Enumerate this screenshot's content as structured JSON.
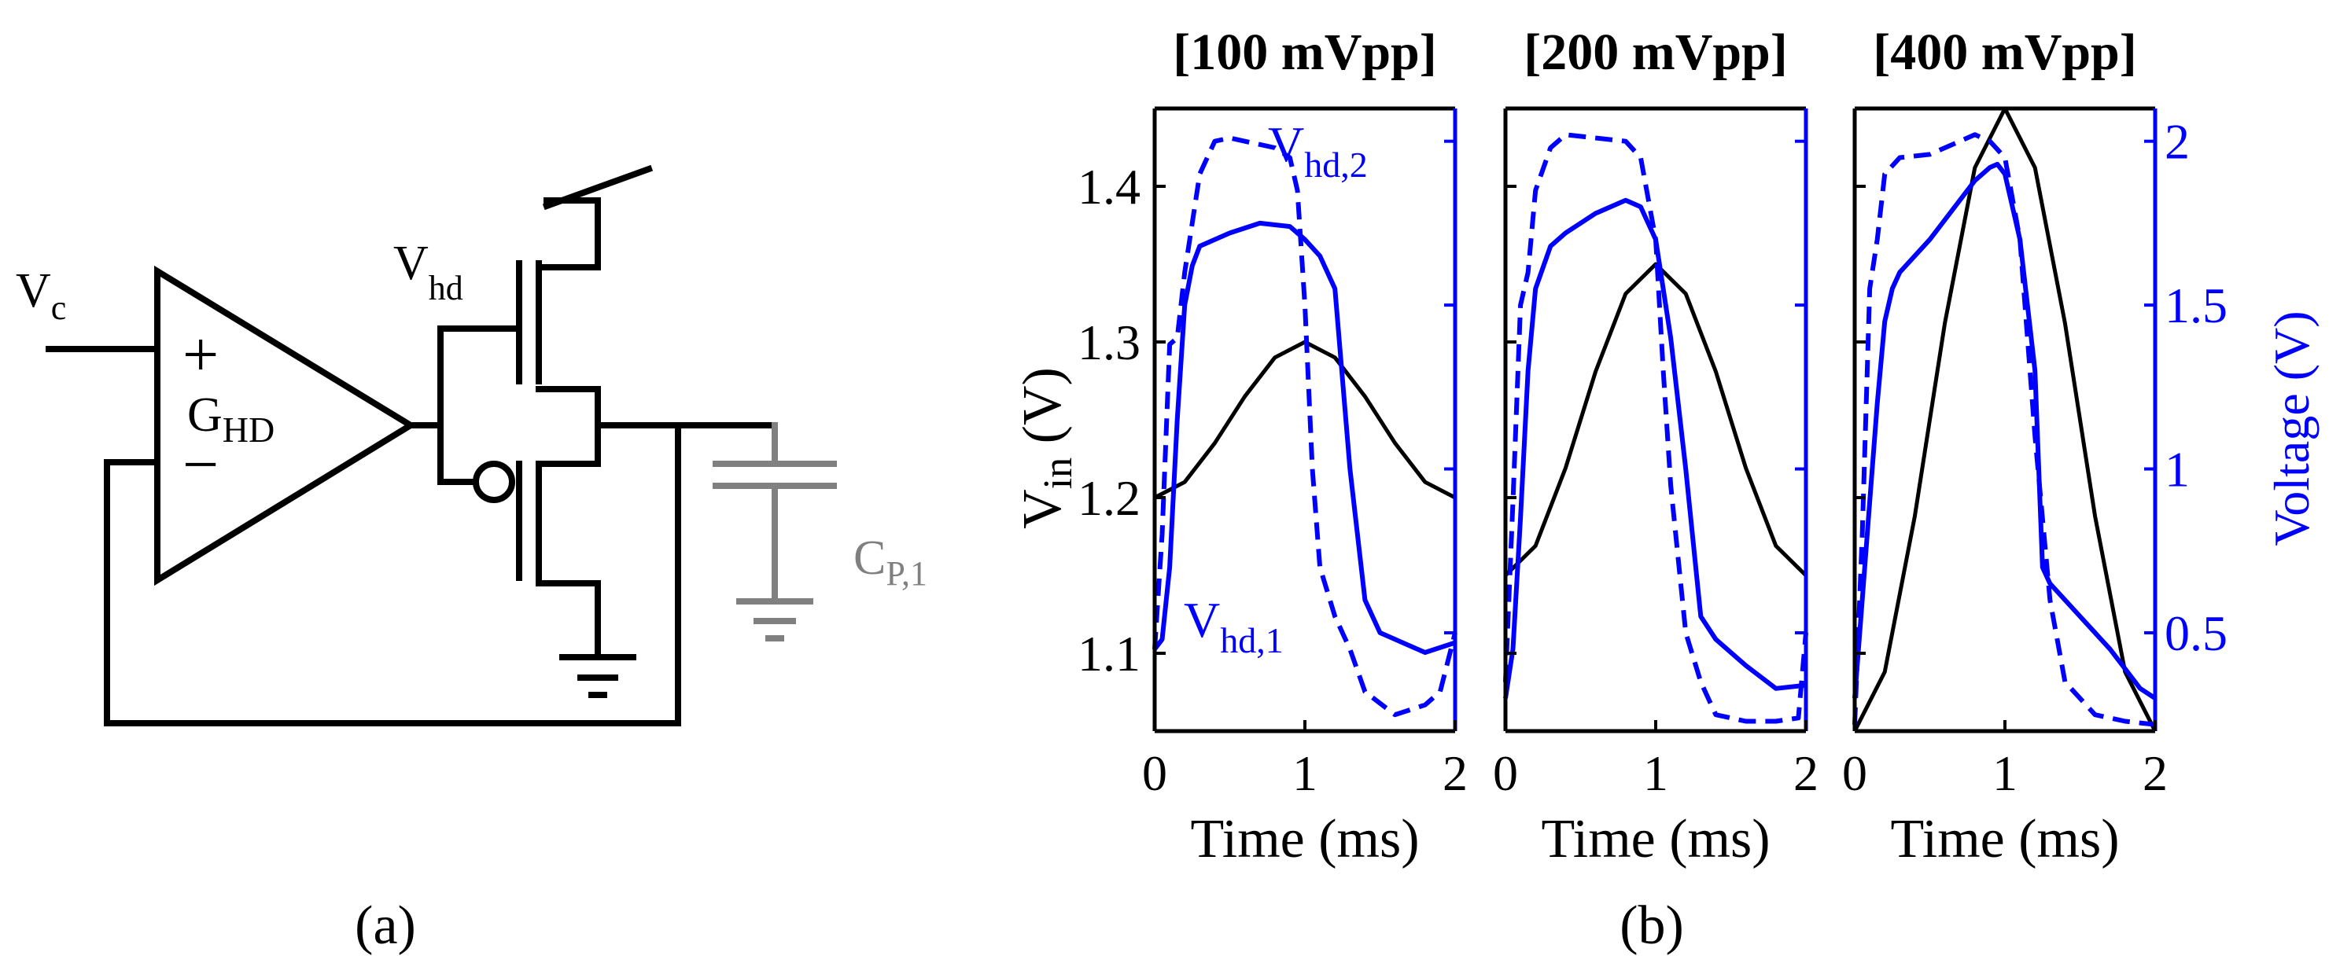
{
  "figure_a": {
    "caption": "(a)",
    "labels": {
      "vc_main": "V",
      "vc_sub": "c",
      "vhd_main": "V",
      "vhd_sub": "hd",
      "ghd_main": "G",
      "ghd_sub": "HD",
      "plus": "+",
      "minus": "−",
      "cp_main": "C",
      "cp_sub": "P,1"
    },
    "colors": {
      "circuit": "#000000",
      "parasitic": "#808080"
    }
  },
  "figure_b": {
    "caption": "(b)",
    "colors": {
      "vin": "#000000",
      "vhd": "#0000ff",
      "axis_left": "#000000",
      "axis_right": "#0000ff"
    },
    "left_axis": {
      "label_main": "V",
      "label_sub": "in",
      "label_unit": " (V)",
      "ylim": [
        1.05,
        1.45
      ],
      "ticks": [
        1.1,
        1.2,
        1.3,
        1.4
      ],
      "tick_labels": [
        "1.1",
        "1.2",
        "1.3",
        "1.4"
      ]
    },
    "right_axis": {
      "label": "Voltage (V)",
      "ylim": [
        0.2,
        2.1
      ],
      "ticks": [
        0.5,
        1,
        1.5,
        2
      ],
      "tick_labels": [
        "0.5",
        "1",
        "1.5",
        "2"
      ]
    },
    "x_axis": {
      "label": "Time (ms)",
      "xlim": [
        0,
        2
      ],
      "ticks": [
        0,
        1,
        2
      ],
      "tick_labels": [
        "0",
        "1",
        "2"
      ]
    },
    "annotations": {
      "vhd2_main": "V",
      "vhd2_sub": "hd,2",
      "vhd1_main": "V",
      "vhd1_sub": "hd,1"
    }
  },
  "chart_data": [
    {
      "type": "line",
      "title": "[100 mVpp]",
      "xlabel": "Time (ms)",
      "ylabel": "V_in (V)",
      "xlim": [
        0,
        2
      ],
      "ylim_left": [
        1.05,
        1.45
      ],
      "ylim_right": [
        0.2,
        2.1
      ],
      "series": [
        {
          "name": "V_in",
          "axis": "left",
          "style": "solid",
          "color": "#000000",
          "x": [
            0,
            0.2,
            0.4,
            0.6,
            0.8,
            1.0,
            1.2,
            1.4,
            1.6,
            1.8,
            2.0
          ],
          "values": [
            1.2,
            1.21,
            1.235,
            1.265,
            1.29,
            1.3,
            1.29,
            1.265,
            1.235,
            1.21,
            1.2
          ]
        },
        {
          "name": "V_hd,1",
          "axis": "right",
          "style": "solid",
          "color": "#0000ff",
          "x": [
            0,
            0.05,
            0.1,
            0.15,
            0.2,
            0.25,
            0.3,
            0.4,
            0.5,
            0.7,
            0.9,
            1.0,
            1.1,
            1.2,
            1.3,
            1.4,
            1.5,
            1.6,
            1.8,
            2.0
          ],
          "values": [
            0.45,
            0.48,
            0.7,
            1.15,
            1.5,
            1.62,
            1.68,
            1.7,
            1.72,
            1.75,
            1.74,
            1.7,
            1.65,
            1.55,
            1.0,
            0.6,
            0.5,
            0.48,
            0.44,
            0.47
          ]
        },
        {
          "name": "V_hd,2",
          "axis": "right",
          "style": "dashed",
          "color": "#0000ff",
          "x": [
            0,
            0.05,
            0.1,
            0.15,
            0.2,
            0.3,
            0.4,
            0.5,
            0.6,
            0.8,
            0.9,
            0.95,
            1.0,
            1.05,
            1.1,
            1.2,
            1.3,
            1.4,
            1.6,
            1.8,
            1.9,
            2.0
          ],
          "values": [
            0.45,
            0.8,
            1.38,
            1.4,
            1.6,
            1.9,
            2.0,
            2.01,
            2.0,
            1.98,
            1.95,
            1.85,
            1.5,
            1.0,
            0.7,
            0.55,
            0.45,
            0.32,
            0.25,
            0.28,
            0.32,
            0.5
          ]
        }
      ]
    },
    {
      "type": "line",
      "title": "[200 mVpp]",
      "xlabel": "Time (ms)",
      "xlim": [
        0,
        2
      ],
      "ylim_left": [
        1.05,
        1.45
      ],
      "ylim_right": [
        0.2,
        2.1
      ],
      "series": [
        {
          "name": "V_in",
          "axis": "left",
          "style": "solid",
          "color": "#000000",
          "x": [
            0,
            0.2,
            0.4,
            0.6,
            0.8,
            1.0,
            1.2,
            1.4,
            1.6,
            1.8,
            2.0
          ],
          "values": [
            1.15,
            1.169,
            1.219,
            1.281,
            1.331,
            1.35,
            1.331,
            1.281,
            1.219,
            1.169,
            1.15
          ]
        },
        {
          "name": "V_hd,1",
          "axis": "right",
          "style": "solid",
          "color": "#0000ff",
          "x": [
            0,
            0.05,
            0.1,
            0.15,
            0.2,
            0.3,
            0.4,
            0.6,
            0.8,
            0.9,
            1.0,
            1.1,
            1.2,
            1.3,
            1.4,
            1.6,
            1.8,
            2.0
          ],
          "values": [
            0.3,
            0.45,
            0.85,
            1.3,
            1.55,
            1.68,
            1.72,
            1.78,
            1.82,
            1.8,
            1.7,
            1.4,
            1.0,
            0.55,
            0.48,
            0.4,
            0.33,
            0.34
          ]
        },
        {
          "name": "V_hd,2",
          "axis": "right",
          "style": "dashed",
          "color": "#0000ff",
          "x": [
            0,
            0.05,
            0.1,
            0.15,
            0.2,
            0.3,
            0.4,
            0.6,
            0.8,
            0.9,
            1.0,
            1.05,
            1.1,
            1.2,
            1.3,
            1.4,
            1.6,
            1.8,
            1.95,
            2.0
          ],
          "values": [
            0.35,
            0.9,
            1.5,
            1.6,
            1.85,
            1.98,
            2.02,
            2.01,
            2.0,
            1.95,
            1.7,
            1.3,
            0.95,
            0.5,
            0.35,
            0.25,
            0.23,
            0.23,
            0.24,
            0.5
          ]
        }
      ]
    },
    {
      "type": "line",
      "title": "[400 mVpp]",
      "xlabel": "Time (ms)",
      "ylabel_right": "Voltage (V)",
      "xlim": [
        0,
        2
      ],
      "ylim_left": [
        1.05,
        1.45
      ],
      "ylim_right": [
        0.2,
        2.1
      ],
      "series": [
        {
          "name": "V_in",
          "axis": "left",
          "style": "solid",
          "color": "#000000",
          "x": [
            0,
            0.2,
            0.4,
            0.6,
            0.8,
            1.0,
            1.2,
            1.4,
            1.6,
            1.8,
            2.0
          ],
          "values": [
            1.05,
            1.088,
            1.188,
            1.312,
            1.412,
            1.45,
            1.412,
            1.312,
            1.188,
            1.088,
            1.05
          ]
        },
        {
          "name": "V_hd,1",
          "axis": "right",
          "style": "solid",
          "color": "#0000ff",
          "x": [
            0,
            0.05,
            0.1,
            0.15,
            0.2,
            0.25,
            0.3,
            0.5,
            0.7,
            0.8,
            0.9,
            0.95,
            1.0,
            1.1,
            1.2,
            1.25,
            1.3,
            1.5,
            1.7,
            1.9,
            2.0
          ],
          "values": [
            0.3,
            0.6,
            0.9,
            1.2,
            1.45,
            1.55,
            1.6,
            1.7,
            1.82,
            1.88,
            1.92,
            1.93,
            1.9,
            1.7,
            1.3,
            0.7,
            0.65,
            0.55,
            0.45,
            0.33,
            0.3
          ]
        },
        {
          "name": "V_hd,2",
          "axis": "right",
          "style": "dashed",
          "color": "#0000ff",
          "x": [
            0,
            0.05,
            0.1,
            0.15,
            0.2,
            0.3,
            0.5,
            0.7,
            0.8,
            0.9,
            1.0,
            1.1,
            1.2,
            1.3,
            1.4,
            1.6,
            1.8,
            2.0
          ],
          "values": [
            0.22,
            0.8,
            1.55,
            1.7,
            1.9,
            1.95,
            1.96,
            2.0,
            2.02,
            2.0,
            1.95,
            1.7,
            1.1,
            0.6,
            0.35,
            0.25,
            0.23,
            0.22
          ]
        }
      ]
    }
  ]
}
